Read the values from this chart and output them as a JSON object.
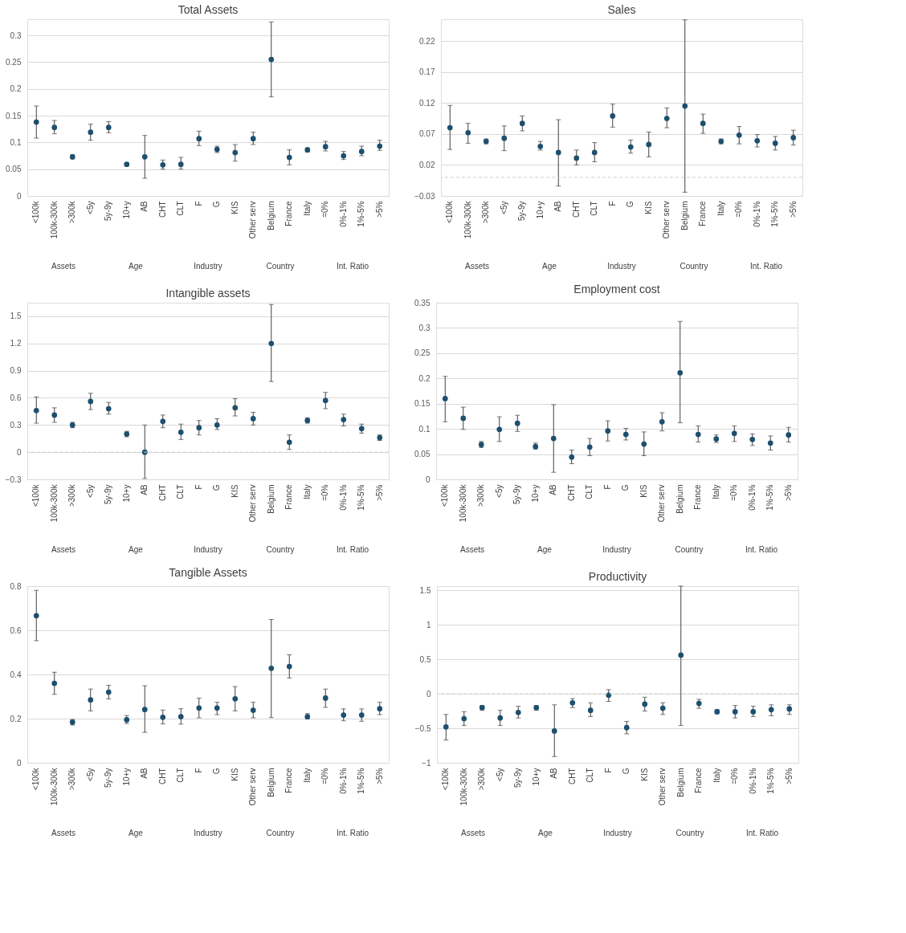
{
  "chart_data": [
    {
      "type": "scatter",
      "title": "Total Assets",
      "categories": [
        "<100k",
        "100k-300k",
        ">300k",
        "<5y",
        "5y-9y",
        "10+y",
        "AB",
        "CHT",
        "CLT",
        "F",
        "G",
        "KIS",
        "Other serv",
        "Belgium",
        "France",
        "Italy",
        "=0%",
        "0%-1%",
        "1%-5%",
        ">5%"
      ],
      "series": [
        {
          "color": "#1d4f6e",
          "values": [
            0.138,
            0.128,
            0.073,
            0.119,
            0.128,
            0.059,
            0.073,
            0.058,
            0.059,
            0.107,
            0.087,
            0.081,
            0.107,
            0.255,
            0.072,
            0.086,
            0.092,
            0.075,
            0.083,
            0.093
          ],
          "errors": [
            [
              0.108,
              0.168
            ],
            [
              0.116,
              0.141
            ],
            [
              0.069,
              0.077
            ],
            [
              0.104,
              0.134
            ],
            [
              0.118,
              0.139
            ],
            [
              0.056,
              0.062
            ],
            [
              0.033,
              0.113
            ],
            [
              0.05,
              0.067
            ],
            [
              0.05,
              0.072
            ],
            [
              0.094,
              0.121
            ],
            [
              0.081,
              0.093
            ],
            [
              0.065,
              0.096
            ],
            [
              0.096,
              0.119
            ],
            [
              0.185,
              0.325
            ],
            [
              0.058,
              0.086
            ],
            [
              0.082,
              0.09
            ],
            [
              0.084,
              0.102
            ],
            [
              0.068,
              0.083
            ],
            [
              0.075,
              0.093
            ],
            [
              0.085,
              0.104
            ]
          ]
        }
      ],
      "ylim": [
        0,
        0.33
      ],
      "yticks": [
        0,
        0.05,
        0.1,
        0.15,
        0.2,
        0.25,
        0.3
      ],
      "grid": "y",
      "marker": "circle",
      "annotations": [
        "Assets",
        "Age",
        "Industry",
        "Country",
        "Int. Ratio"
      ]
    },
    {
      "type": "scatter",
      "title": "Sales",
      "categories": [
        "<100k",
        "100k-300k",
        ">300k",
        "<5y",
        "5y-9y",
        "10+y",
        "AB",
        "CHT",
        "CLT",
        "F",
        "G",
        "KIS",
        "Other serv",
        "Belgium",
        "France",
        "Italy",
        "=0%",
        "0%-1%",
        "1%-5%",
        ">5%"
      ],
      "series": [
        {
          "color": "#1d4f6e",
          "values": [
            0.08,
            0.072,
            0.058,
            0.063,
            0.087,
            0.05,
            0.04,
            0.031,
            0.04,
            0.099,
            0.049,
            0.053,
            0.095,
            0.115,
            0.087,
            0.058,
            0.068,
            0.059,
            0.055,
            0.064
          ],
          "errors": [
            [
              0.045,
              0.116
            ],
            [
              0.055,
              0.087
            ],
            [
              0.054,
              0.062
            ],
            [
              0.043,
              0.083
            ],
            [
              0.075,
              0.099
            ],
            [
              0.044,
              0.058
            ],
            [
              -0.014,
              0.093
            ],
            [
              0.02,
              0.044
            ],
            [
              0.025,
              0.056
            ],
            [
              0.081,
              0.118
            ],
            [
              0.039,
              0.06
            ],
            [
              0.033,
              0.073
            ],
            [
              0.08,
              0.112
            ],
            [
              -0.024,
              0.254
            ],
            [
              0.071,
              0.102
            ],
            [
              0.054,
              0.062
            ],
            [
              0.054,
              0.082
            ],
            [
              0.049,
              0.069
            ],
            [
              0.044,
              0.066
            ],
            [
              0.052,
              0.076
            ]
          ]
        }
      ],
      "ylim": [
        -0.03,
        0.255
      ],
      "yticks": [
        -0.03,
        0.02,
        0.07,
        0.12,
        0.17,
        0.22
      ],
      "grid": "y",
      "marker": "circle",
      "ref_lines": [
        {
          "axis": "y",
          "value": 0,
          "line_style": "dashed"
        }
      ],
      "annotations": [
        "Assets",
        "Age",
        "Industry",
        "Country",
        "Int. Ratio"
      ]
    },
    {
      "type": "scatter",
      "title": "Intangible assets",
      "categories": [
        "<100k",
        "100k-300k",
        ">300k",
        "<5y",
        "5y-9y",
        "10+y",
        "AB",
        "CHT",
        "CLT",
        "F",
        "G",
        "KIS",
        "Other serv",
        "Belgium",
        "France",
        "Italy",
        "=0%",
        "0%-1%",
        "1%-5%",
        ">5%"
      ],
      "series": [
        {
          "color": "#1d4f6e",
          "values": [
            0.46,
            0.41,
            0.3,
            0.56,
            0.48,
            0.2,
            0,
            0.34,
            0.22,
            0.27,
            0.3,
            0.49,
            0.37,
            1.2,
            0.11,
            0.35,
            0.57,
            0.36,
            0.26,
            0.16
          ],
          "errors": [
            [
              0.32,
              0.61
            ],
            [
              0.33,
              0.49
            ],
            [
              0.27,
              0.33
            ],
            [
              0.47,
              0.65
            ],
            [
              0.42,
              0.55
            ],
            [
              0.17,
              0.23
            ],
            [
              -0.29,
              0.3
            ],
            [
              0.27,
              0.41
            ],
            [
              0.14,
              0.31
            ],
            [
              0.19,
              0.35
            ],
            [
              0.25,
              0.37
            ],
            [
              0.4,
              0.59
            ],
            [
              0.3,
              0.44
            ],
            [
              0.78,
              1.63
            ],
            [
              0.03,
              0.19
            ],
            [
              0.32,
              0.38
            ],
            [
              0.48,
              0.66
            ],
            [
              0.29,
              0.42
            ],
            [
              0.21,
              0.31
            ],
            [
              0.13,
              0.19
            ]
          ]
        }
      ],
      "ylim": [
        -0.3,
        1.65
      ],
      "yticks": [
        -0.3,
        0,
        0.3,
        0.6,
        0.9,
        1.2,
        1.5
      ],
      "grid": "y",
      "marker": "circle",
      "ref_lines": [
        {
          "axis": "y",
          "value": 0,
          "line_style": "dashed"
        }
      ],
      "annotations": [
        "Assets",
        "Age",
        "Industry",
        "Country",
        "Int. Ratio"
      ]
    },
    {
      "type": "scatter",
      "title": "Employment cost",
      "categories": [
        "<100k",
        "100k-300k",
        ">300k",
        "<5y",
        "5y-9y",
        "10+y",
        "AB",
        "CHT",
        "CLT",
        "F",
        "G",
        "KIS",
        "Other serv",
        "Belgium",
        "France",
        "Italy",
        "=0%",
        "0%-1%",
        "1%-5%",
        ">5%"
      ],
      "series": [
        {
          "color": "#1d4f6e",
          "values": [
            0.16,
            0.121,
            0.069,
            0.099,
            0.111,
            0.065,
            0.081,
            0.044,
            0.064,
            0.096,
            0.089,
            0.07,
            0.114,
            0.211,
            0.089,
            0.08,
            0.091,
            0.079,
            0.072,
            0.088
          ],
          "errors": [
            [
              0.114,
              0.204
            ],
            [
              0.099,
              0.143
            ],
            [
              0.063,
              0.075
            ],
            [
              0.075,
              0.124
            ],
            [
              0.095,
              0.127
            ],
            [
              0.06,
              0.072
            ],
            [
              0.014,
              0.148
            ],
            [
              0.031,
              0.058
            ],
            [
              0.047,
              0.081
            ],
            [
              0.076,
              0.116
            ],
            [
              0.078,
              0.101
            ],
            [
              0.047,
              0.094
            ],
            [
              0.096,
              0.132
            ],
            [
              0.112,
              0.313
            ],
            [
              0.074,
              0.106
            ],
            [
              0.073,
              0.088
            ],
            [
              0.075,
              0.106
            ],
            [
              0.067,
              0.09
            ],
            [
              0.058,
              0.086
            ],
            [
              0.074,
              0.103
            ]
          ]
        }
      ],
      "ylim": [
        0,
        0.35
      ],
      "yticks": [
        0,
        0.05,
        0.1,
        0.15,
        0.2,
        0.25,
        0.3,
        0.35
      ],
      "grid": "y",
      "marker": "circle",
      "annotations": [
        "Assets",
        "Age",
        "Industry",
        "Country",
        "Int. Ratio"
      ]
    },
    {
      "type": "scatter",
      "title": "Tangible Assets",
      "categories": [
        "<100k",
        "100k-300k",
        ">300k",
        "<5y",
        "5y-9y",
        "10+y",
        "AB",
        "CHT",
        "CLT",
        "F",
        "G",
        "KIS",
        "Other serv",
        "Belgium",
        "France",
        "Italy",
        "=0%",
        "0%-1%",
        "1%-5%",
        ">5%"
      ],
      "series": [
        {
          "color": "#1d4f6e",
          "values": [
            0.666,
            0.36,
            0.184,
            0.285,
            0.32,
            0.195,
            0.241,
            0.206,
            0.209,
            0.248,
            0.248,
            0.29,
            0.238,
            0.428,
            0.436,
            0.209,
            0.293,
            0.216,
            0.216,
            0.245
          ],
          "errors": [
            [
              0.553,
              0.781
            ],
            [
              0.31,
              0.41
            ],
            [
              0.171,
              0.196
            ],
            [
              0.235,
              0.334
            ],
            [
              0.289,
              0.351
            ],
            [
              0.178,
              0.214
            ],
            [
              0.138,
              0.349
            ],
            [
              0.176,
              0.239
            ],
            [
              0.175,
              0.245
            ],
            [
              0.204,
              0.293
            ],
            [
              0.218,
              0.274
            ],
            [
              0.235,
              0.345
            ],
            [
              0.204,
              0.274
            ],
            [
              0.205,
              0.649
            ],
            [
              0.384,
              0.489
            ],
            [
              0.198,
              0.223
            ],
            [
              0.251,
              0.334
            ],
            [
              0.19,
              0.244
            ],
            [
              0.188,
              0.244
            ],
            [
              0.218,
              0.274
            ]
          ]
        }
      ],
      "ylim": [
        0,
        0.8
      ],
      "yticks": [
        0,
        0.2,
        0.4,
        0.6,
        0.8
      ],
      "grid": "y",
      "marker": "circle",
      "annotations": [
        "Assets",
        "Age",
        "Industry",
        "Country",
        "Int. Ratio"
      ]
    },
    {
      "type": "scatter",
      "title": "Productivity",
      "categories": [
        "<100k",
        "100k-300k",
        ">300k",
        "<5y",
        "5y-9y",
        "10+y",
        "AB",
        "CHT",
        "CLT",
        "F",
        "G",
        "KIS",
        "Other serv",
        "Belgium",
        "France",
        "Italy",
        "=0%",
        "0%-1%",
        "1%-5%",
        ">5%"
      ],
      "series": [
        {
          "color": "#1d4f6e",
          "values": [
            -0.48,
            -0.36,
            -0.2,
            -0.35,
            -0.27,
            -0.2,
            -0.54,
            -0.13,
            -0.24,
            -0.02,
            -0.49,
            -0.15,
            -0.21,
            0.56,
            -0.14,
            -0.26,
            -0.26,
            -0.26,
            -0.23,
            -0.22
          ],
          "errors": [
            [
              -0.67,
              -0.3
            ],
            [
              -0.46,
              -0.26
            ],
            [
              -0.24,
              -0.17
            ],
            [
              -0.46,
              -0.24
            ],
            [
              -0.35,
              -0.18
            ],
            [
              -0.24,
              -0.17
            ],
            [
              -0.91,
              -0.16
            ],
            [
              -0.2,
              -0.07
            ],
            [
              -0.33,
              -0.13
            ],
            [
              -0.11,
              0.06
            ],
            [
              -0.58,
              -0.4
            ],
            [
              -0.25,
              -0.05
            ],
            [
              -0.3,
              -0.13
            ],
            [
              -0.46,
              1.56
            ],
            [
              -0.21,
              -0.08
            ],
            [
              -0.29,
              -0.23
            ],
            [
              -0.35,
              -0.17
            ],
            [
              -0.33,
              -0.18
            ],
            [
              -0.32,
              -0.16
            ],
            [
              -0.3,
              -0.16
            ]
          ]
        }
      ],
      "ylim": [
        -1,
        1.56
      ],
      "yticks": [
        -1,
        -0.5,
        0,
        0.5,
        1,
        1.5
      ],
      "grid": "y",
      "marker": "circle",
      "ref_lines": [
        {
          "axis": "y",
          "value": 0,
          "line_style": "dashed"
        }
      ],
      "annotations": [
        "Assets",
        "Age",
        "Industry",
        "Country",
        "Int. Ratio"
      ]
    }
  ]
}
